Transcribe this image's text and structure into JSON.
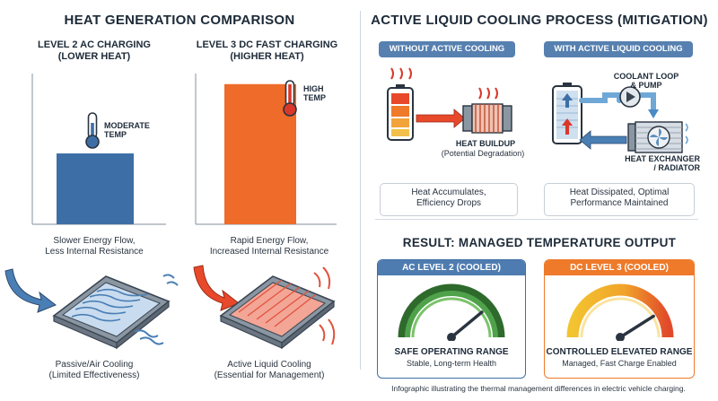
{
  "left": {
    "title": "HEAT GENERATION COMPARISON",
    "ac": {
      "heading_l1": "LEVEL 2 AC CHARGING",
      "heading_l2": "(LOWER HEAT)",
      "bar_level": 0.47,
      "temp_l1": "MODERATE",
      "temp_l2": "TEMP",
      "flow_l1": "Slower Energy Flow,",
      "flow_l2": "Less Internal Resistance",
      "cool_l1": "Passive/Air Cooling",
      "cool_l2": "(Limited Effectiveness)",
      "bar_color": "#3d6fa6"
    },
    "dc": {
      "heading_l1": "LEVEL 3 DC FAST CHARGING",
      "heading_l2": "(HIGHER HEAT)",
      "bar_level": 0.93,
      "temp_l1": "HIGH",
      "temp_l2": "TEMP",
      "flow_l1": "Rapid Energy Flow,",
      "flow_l2": "Increased Internal Resistance",
      "cool_l1": "Active Liquid Cooling",
      "cool_l2": "(Essential for Management)",
      "bar_color": "#ee6b2a"
    }
  },
  "right": {
    "title": "ACTIVE LIQUID COOLING PROCESS (MITIGATION)",
    "without": {
      "label": "WITHOUT ACTIVE COOLING",
      "buildup": "HEAT BUILDUP",
      "buildup_sub": "(Potential Degradation)",
      "result_l1": "Heat Accumulates,",
      "result_l2": "Efficiency Drops"
    },
    "with": {
      "label": "WITH ACTIVE LIQUID COOLING",
      "loop_l1": "COOLANT LOOP",
      "loop_l2": "& PUMP",
      "exch_l1": "HEAT EXCHANGER",
      "exch_l2": "/ RADIATOR",
      "result_l1": "Heat Dissipated, Optimal",
      "result_l2": "Performance Maintained"
    },
    "result_title": "RESULT: MANAGED TEMPERATURE OUTPUT",
    "ac_gauge": {
      "label": "AC LEVEL 2 (COOLED)",
      "status": "SAFE OPERATING RANGE",
      "sub": "Stable, Long-term Health",
      "level": 0.78,
      "color": "#3d6fa6"
    },
    "dc_gauge": {
      "label": "DC LEVEL 3 (COOLED)",
      "status": "CONTROLLED ELEVATED RANGE",
      "sub": "Managed, Fast Charge Enabled",
      "level": 0.82,
      "color": "#ee7a2a"
    },
    "footer": "Infographic illustrating the thermal management differences in electric vehicle charging."
  },
  "colors": {
    "blue": "#3d6fa6",
    "orange": "#ee6b2a",
    "green": "#4f8a3c",
    "red": "#d9372a"
  }
}
